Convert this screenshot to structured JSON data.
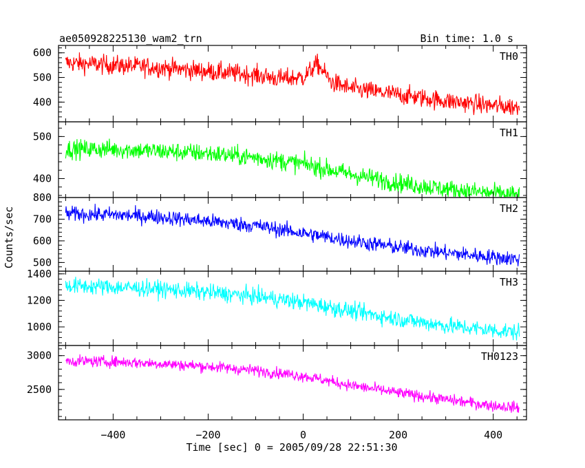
{
  "header": {
    "title": "ae050928225130_wam2_trn",
    "bin_time": "Bin time: 1.0 s"
  },
  "chart_data": {
    "type": "line",
    "xlabel": "Time [sec] 0 = 2005/09/28 22:51:30",
    "ylabel": "Counts/sec",
    "xlim": [
      -515,
      470
    ],
    "x_ticks": [
      -400,
      -200,
      0,
      200,
      400
    ],
    "x_range": [
      -500,
      455
    ],
    "grid": false,
    "panels": [
      {
        "name": "TH0",
        "color": "#ff0000",
        "ylim": [
          320,
          630
        ],
        "y_ticks": [
          400,
          500,
          600
        ],
        "x": [
          -500,
          -400,
          -300,
          -200,
          -100,
          -50,
          0,
          30,
          60,
          100,
          200,
          300,
          400,
          455
        ],
        "y": [
          560,
          550,
          540,
          525,
          510,
          495,
          500,
          555,
          480,
          455,
          430,
          405,
          385,
          380
        ],
        "noise": 28
      },
      {
        "name": "TH1",
        "color": "#00ff00",
        "ylim": [
          355,
          535
        ],
        "y_ticks": [
          400,
          500
        ],
        "x": [
          -500,
          -400,
          -300,
          -200,
          -100,
          0,
          100,
          200,
          300,
          400,
          455
        ],
        "y": [
          470,
          470,
          465,
          460,
          450,
          435,
          410,
          390,
          375,
          365,
          360
        ],
        "noise": 16
      },
      {
        "name": "TH2",
        "color": "#0000ff",
        "ylim": [
          460,
          800
        ],
        "y_ticks": [
          500,
          600,
          700,
          800
        ],
        "x": [
          -500,
          -400,
          -300,
          -200,
          -100,
          0,
          100,
          200,
          300,
          400,
          455
        ],
        "y": [
          725,
          720,
          710,
          690,
          670,
          635,
          600,
          570,
          545,
          525,
          515
        ],
        "noise": 25
      },
      {
        "name": "TH3",
        "color": "#00ffff",
        "ylim": [
          860,
          1420
        ],
        "y_ticks": [
          1000,
          1200,
          1400
        ],
        "x": [
          -500,
          -400,
          -300,
          -200,
          -100,
          0,
          100,
          200,
          300,
          400,
          455
        ],
        "y": [
          1310,
          1300,
          1285,
          1260,
          1230,
          1185,
          1120,
          1060,
          1010,
          975,
          960
        ],
        "noise": 45
      },
      {
        "name": "TH0123",
        "color": "#ff00ff",
        "ylim": [
          2050,
          3150
        ],
        "y_ticks": [
          2500,
          3000
        ],
        "x": [
          -500,
          -400,
          -300,
          -200,
          -100,
          0,
          100,
          200,
          300,
          400,
          455
        ],
        "y": [
          2920,
          2910,
          2880,
          2840,
          2780,
          2700,
          2560,
          2450,
          2350,
          2260,
          2230
        ],
        "noise": 60
      }
    ]
  }
}
